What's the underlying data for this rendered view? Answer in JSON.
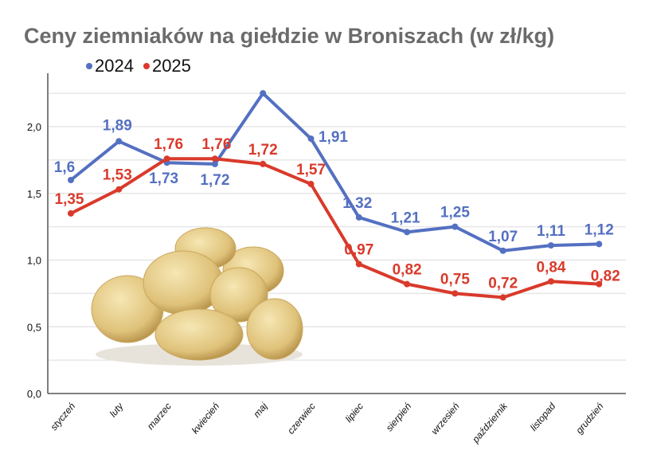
{
  "chart_data": {
    "type": "line",
    "title": "Ceny ziemniaków na giełdzie w Broniszach (w zł/kg)",
    "xlabel": "",
    "ylabel": "",
    "ylim": [
      0,
      2.25
    ],
    "grid": true,
    "legend_position": "top-left",
    "yticks": [
      "0,0",
      "0,5",
      "1,0",
      "1,5",
      "2,0"
    ],
    "ytick_values": [
      0,
      0.5,
      1.0,
      1.5,
      2.0
    ],
    "categories": [
      "styczeń",
      "luty",
      "marzec",
      "kwiecień",
      "maj",
      "czerwiec",
      "lipiec",
      "sierpień",
      "wrzesień",
      "październik",
      "listopad",
      "grudzień"
    ],
    "series": [
      {
        "name": "2024",
        "color": "#5470c1",
        "values": [
          1.6,
          1.89,
          1.73,
          1.72,
          2.25,
          1.91,
          1.32,
          1.21,
          1.25,
          1.07,
          1.11,
          1.12
        ],
        "labels": [
          "1,6",
          "1,89",
          "1,73",
          "1,72",
          "",
          "1,91",
          "1,32",
          "1,21",
          "1,25",
          "1,07",
          "1,11",
          "1,12"
        ]
      },
      {
        "name": "2025",
        "color": "#d93a2b",
        "values": [
          1.35,
          1.53,
          1.76,
          1.76,
          1.72,
          1.57,
          0.97,
          0.82,
          0.75,
          0.72,
          0.84,
          0.82
        ],
        "labels": [
          "1,35",
          "1,53",
          "1,76",
          "1,76",
          "1,72",
          "1,57",
          "0,97",
          "0,82",
          "0,75",
          "0,72",
          "0,84",
          "0,82"
        ]
      }
    ]
  }
}
